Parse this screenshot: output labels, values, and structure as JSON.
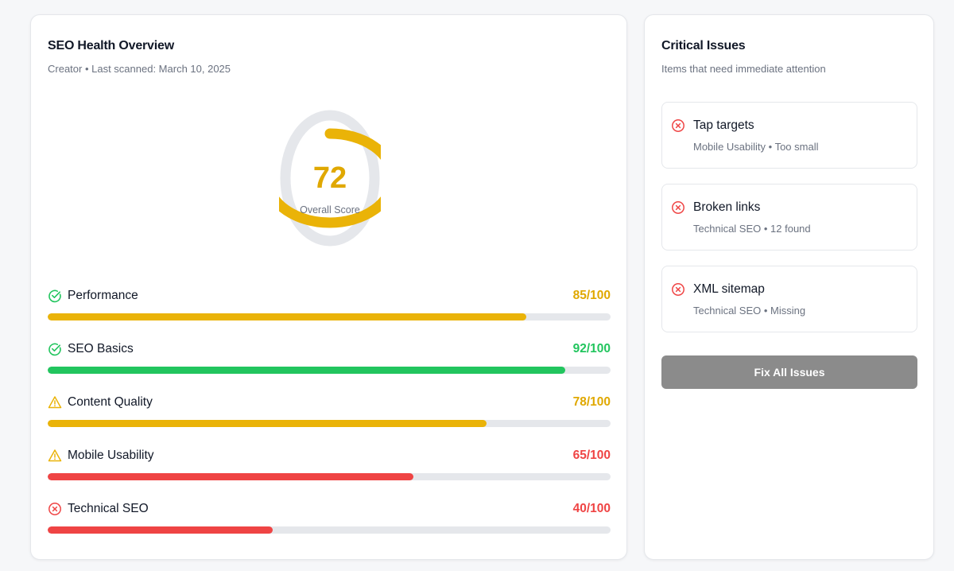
{
  "colors": {
    "good": "#22c55e",
    "warning": "#eab308",
    "score_warning": "#e0a800",
    "danger": "#ef4444",
    "track": "#e5e7eb",
    "button": "#8b8b8b"
  },
  "overview": {
    "title": "SEO Health Overview",
    "subtitle": "Creator • Last scanned: March 10, 2025",
    "overall_score": 72,
    "overall_score_label": "Overall Score",
    "score_max": 100,
    "metrics": [
      {
        "label": "Performance",
        "score": 85,
        "score_text": "85/100",
        "status": "good",
        "icon": "check-circle-icon",
        "bar_color": "#eab308",
        "text_color": "#e0a800"
      },
      {
        "label": "SEO Basics",
        "score": 92,
        "score_text": "92/100",
        "status": "good",
        "icon": "check-circle-icon",
        "bar_color": "#22c55e",
        "text_color": "#22c55e"
      },
      {
        "label": "Content Quality",
        "score": 78,
        "score_text": "78/100",
        "status": "warning",
        "icon": "warning-triangle-icon",
        "bar_color": "#eab308",
        "text_color": "#e0a800"
      },
      {
        "label": "Mobile Usability",
        "score": 65,
        "score_text": "65/100",
        "status": "warning",
        "icon": "warning-triangle-icon",
        "bar_color": "#ef4444",
        "text_color": "#ef4444"
      },
      {
        "label": "Technical SEO",
        "score": 40,
        "score_text": "40/100",
        "status": "danger",
        "icon": "x-circle-icon",
        "bar_color": "#ef4444",
        "text_color": "#ef4444"
      }
    ]
  },
  "issues": {
    "title": "Critical Issues",
    "subtitle": "Items that need immediate attention",
    "items": [
      {
        "title": "Tap targets",
        "meta": "Mobile Usability • Too small",
        "icon": "x-circle-icon"
      },
      {
        "title": "Broken links",
        "meta": "Technical SEO • 12 found",
        "icon": "x-circle-icon"
      },
      {
        "title": "XML sitemap",
        "meta": "Technical SEO • Missing",
        "icon": "x-circle-icon"
      }
    ],
    "fix_all_label": "Fix All Issues"
  }
}
